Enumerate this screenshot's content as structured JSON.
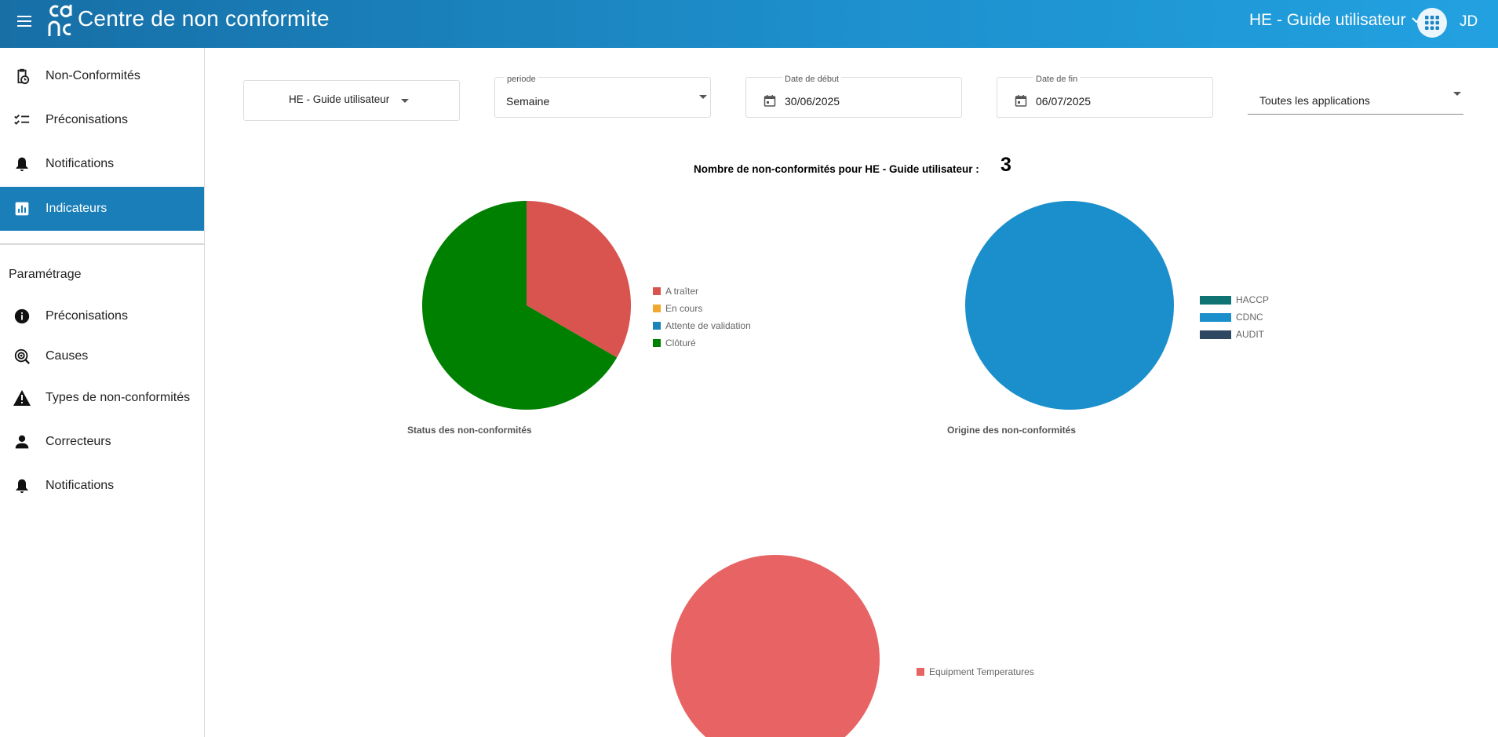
{
  "header": {
    "app_title": "Centre de non conformite",
    "site_selector": "HE - Guide utilisateur",
    "avatar_initials": "JD",
    "brand_color": "#1d8fcc"
  },
  "sidebar": {
    "items": [
      {
        "label": "Non-Conformités",
        "icon": "clipboard-clock-icon"
      },
      {
        "label": "Préconisations",
        "icon": "checklist-icon"
      },
      {
        "label": "Notifications",
        "icon": "bell-icon"
      },
      {
        "label": "Indicateurs",
        "icon": "bar-chart-icon",
        "active": true
      }
    ],
    "settings_title": "Paramétrage",
    "settings_items": [
      {
        "label": "Préconisations",
        "icon": "info-icon"
      },
      {
        "label": "Causes",
        "icon": "target-icon"
      },
      {
        "label": "Types de non-conformités",
        "icon": "warning-icon"
      },
      {
        "label": "Correcteurs",
        "icon": "person-icon"
      },
      {
        "label": "Notifications",
        "icon": "bell-icon"
      }
    ]
  },
  "filters": {
    "site_button": "HE - Guide utilisateur",
    "periode_label": "periode",
    "periode_value": "Semaine",
    "date_debut_label": "Date de début",
    "date_debut_value": "30/06/2025",
    "date_fin_label": "Date de fin",
    "date_fin_value": "06/07/2025",
    "applications_value": "Toutes les applications"
  },
  "summary": {
    "count_label": "Nombre de non-conformités pour HE - Guide utilisateur :",
    "count_value": "3"
  },
  "chart_data": [
    {
      "type": "pie",
      "title": "Status des non-conformités",
      "categories": [
        "A traîter",
        "En cours",
        "Attente de validation",
        "Clôturé"
      ],
      "values": [
        1,
        0,
        0,
        2
      ],
      "colors": [
        "#d9534f",
        "#f0a830",
        "#1a84b8",
        "#008000"
      ]
    },
    {
      "type": "pie",
      "title": "Origine des non-conformités",
      "categories": [
        "HACCP",
        "CDNC",
        "AUDIT"
      ],
      "values": [
        0,
        3,
        0
      ],
      "colors": [
        "#0f7373",
        "#1b8fcb",
        "#2f4760"
      ]
    },
    {
      "type": "pie",
      "title": "",
      "categories": [
        "Equipment Temperatures"
      ],
      "values": [
        3
      ],
      "colors": [
        "#e86363"
      ]
    }
  ]
}
